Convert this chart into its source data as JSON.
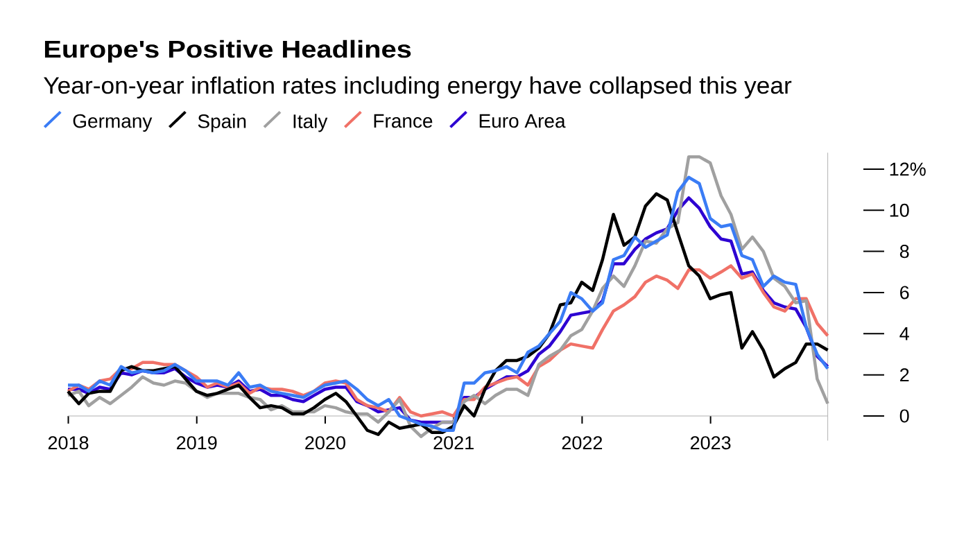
{
  "chart_data": {
    "type": "line",
    "title": "Europe's Positive Headlines",
    "subtitle": "Year-on-year inflation rates including energy have collapsed this year",
    "x": [
      "2017-12-31",
      "2018-01-31",
      "2018-02-28",
      "2018-03-31",
      "2018-04-30",
      "2018-05-31",
      "2018-06-30",
      "2018-07-31",
      "2018-08-31",
      "2018-09-30",
      "2018-10-31",
      "2018-11-30",
      "2018-12-31",
      "2019-01-31",
      "2019-02-28",
      "2019-03-31",
      "2019-04-30",
      "2019-05-31",
      "2019-06-30",
      "2019-07-31",
      "2019-08-31",
      "2019-09-30",
      "2019-10-31",
      "2019-11-30",
      "2019-12-31",
      "2020-01-31",
      "2020-02-29",
      "2020-03-31",
      "2020-04-30",
      "2020-05-31",
      "2020-06-30",
      "2020-07-31",
      "2020-08-31",
      "2020-09-30",
      "2020-10-31",
      "2020-11-30",
      "2020-12-31",
      "2021-01-31",
      "2021-02-28",
      "2021-03-31",
      "2021-04-30",
      "2021-05-31",
      "2021-06-30",
      "2021-07-31",
      "2021-08-31",
      "2021-09-30",
      "2021-10-31",
      "2021-11-30",
      "2021-12-31",
      "2022-01-31",
      "2022-02-28",
      "2022-03-31",
      "2022-04-30",
      "2022-05-31",
      "2022-06-30",
      "2022-07-31",
      "2022-08-31",
      "2022-09-30",
      "2022-10-31",
      "2022-11-30",
      "2022-12-31",
      "2023-01-31",
      "2023-02-28",
      "2023-03-31",
      "2023-04-30",
      "2023-05-31",
      "2023-06-30",
      "2023-07-31",
      "2023-08-31",
      "2023-09-30",
      "2023-10-31",
      "2023-11-30"
    ],
    "series": [
      {
        "name": "Germany",
        "color": "#3a7cf5",
        "values": [
          1.5,
          1.5,
          1.2,
          1.7,
          1.5,
          2.4,
          2.1,
          2.2,
          2.1,
          2.2,
          2.5,
          2.2,
          1.7,
          1.7,
          1.7,
          1.5,
          2.1,
          1.4,
          1.5,
          1.2,
          1.1,
          1.0,
          0.9,
          1.2,
          1.5,
          1.6,
          1.7,
          1.3,
          0.8,
          0.5,
          0.8,
          0.0,
          -0.2,
          -0.4,
          -0.5,
          -0.7,
          -0.7,
          1.6,
          1.6,
          2.1,
          2.2,
          2.4,
          2.1,
          3.1,
          3.4,
          4.0,
          4.6,
          6.0,
          5.7,
          5.1,
          5.5,
          7.6,
          7.8,
          8.7,
          8.2,
          8.5,
          8.8,
          10.9,
          11.6,
          11.3,
          9.6,
          9.2,
          9.3,
          7.8,
          7.6,
          6.3,
          6.8,
          6.5,
          6.4,
          4.3,
          3.0,
          2.3
        ]
      },
      {
        "name": "Spain",
        "color": "#000000",
        "values": [
          1.2,
          0.6,
          1.1,
          1.2,
          1.2,
          2.2,
          2.4,
          2.2,
          2.2,
          2.3,
          2.4,
          1.8,
          1.2,
          1.0,
          1.1,
          1.3,
          1.5,
          0.9,
          0.4,
          0.5,
          0.4,
          0.1,
          0.1,
          0.4,
          0.8,
          1.1,
          0.7,
          0.0,
          -0.7,
          -0.9,
          -0.3,
          -0.6,
          -0.5,
          -0.4,
          -0.8,
          -0.8,
          -0.5,
          0.5,
          0.0,
          1.3,
          2.2,
          2.7,
          2.7,
          2.9,
          3.3,
          4.0,
          5.4,
          5.5,
          6.5,
          6.1,
          7.6,
          9.8,
          8.3,
          8.7,
          10.2,
          10.8,
          10.5,
          8.9,
          7.3,
          6.8,
          5.7,
          5.9,
          6.0,
          3.3,
          4.1,
          3.2,
          1.9,
          2.3,
          2.6,
          3.5,
          3.5,
          3.2
        ]
      },
      {
        "name": "Italy",
        "color": "#a0a0a0",
        "values": [
          1.0,
          1.2,
          0.5,
          0.9,
          0.6,
          1.0,
          1.4,
          1.9,
          1.6,
          1.5,
          1.7,
          1.6,
          1.2,
          0.9,
          1.1,
          1.1,
          1.1,
          0.9,
          0.8,
          0.3,
          0.5,
          0.2,
          0.2,
          0.2,
          0.5,
          0.4,
          0.2,
          0.1,
          0.1,
          -0.3,
          0.2,
          0.8,
          -0.5,
          -1.0,
          -0.6,
          -0.3,
          -0.3,
          0.7,
          1.0,
          0.6,
          1.0,
          1.3,
          1.3,
          1.0,
          2.5,
          2.9,
          3.2,
          3.9,
          4.2,
          5.1,
          6.2,
          6.8,
          6.3,
          7.3,
          8.5,
          8.4,
          9.1,
          9.4,
          12.6,
          12.6,
          12.3,
          10.7,
          9.8,
          8.1,
          8.7,
          8.0,
          6.7,
          6.3,
          5.5,
          5.6,
          1.8,
          0.6
        ]
      },
      {
        "name": "France",
        "color": "#f07167",
        "values": [
          1.2,
          1.5,
          1.3,
          1.7,
          1.8,
          2.3,
          2.3,
          2.6,
          2.6,
          2.5,
          2.5,
          2.2,
          1.9,
          1.4,
          1.6,
          1.4,
          1.6,
          1.1,
          1.4,
          1.3,
          1.3,
          1.2,
          1.0,
          1.2,
          1.6,
          1.7,
          1.6,
          0.8,
          0.5,
          0.4,
          0.2,
          0.9,
          0.2,
          0.0,
          0.1,
          0.2,
          0.0,
          0.8,
          0.8,
          1.4,
          1.6,
          1.8,
          1.9,
          1.5,
          2.4,
          2.7,
          3.2,
          3.5,
          3.4,
          3.3,
          4.2,
          5.1,
          5.4,
          5.8,
          6.5,
          6.8,
          6.6,
          6.2,
          7.1,
          7.1,
          6.7,
          7.0,
          7.3,
          6.7,
          6.9,
          6.0,
          5.3,
          5.1,
          5.7,
          5.7,
          4.5,
          3.9
        ]
      },
      {
        "name": "Euro Area",
        "color": "#2d00d2",
        "values": [
          1.3,
          1.3,
          1.1,
          1.4,
          1.3,
          2.1,
          2.0,
          2.2,
          2.1,
          2.1,
          2.3,
          1.9,
          1.6,
          1.4,
          1.5,
          1.4,
          1.7,
          1.2,
          1.3,
          1.0,
          1.0,
          0.8,
          0.7,
          1.0,
          1.3,
          1.4,
          1.4,
          0.7,
          0.5,
          0.2,
          0.3,
          0.4,
          -0.2,
          -0.3,
          -0.3,
          -0.3,
          -0.3,
          0.9,
          0.9,
          1.3,
          1.6,
          1.9,
          1.9,
          2.2,
          3.0,
          3.4,
          4.1,
          4.9,
          5.0,
          5.1,
          5.6,
          7.4,
          7.4,
          8.1,
          8.6,
          8.9,
          9.1,
          10.0,
          10.6,
          10.1,
          9.2,
          8.6,
          8.5,
          6.9,
          7.0,
          6.1,
          5.5,
          5.3,
          5.2,
          4.3,
          2.9,
          2.4
        ]
      }
    ],
    "xlim": [
      "2017-12-31",
      "2023-11-30"
    ],
    "xticks": [
      {
        "value": "2018-01-01",
        "label": "2018"
      },
      {
        "value": "2019-01-01",
        "label": "2019"
      },
      {
        "value": "2020-01-01",
        "label": "2020"
      },
      {
        "value": "2021-01-01",
        "label": "2021"
      },
      {
        "value": "2022-01-01",
        "label": "2022"
      },
      {
        "value": "2023-01-01",
        "label": "2023"
      }
    ],
    "ylim": [
      -1.2,
      12.8
    ],
    "yticks": [
      0,
      2,
      4,
      6,
      8,
      10,
      {
        "value": 12,
        "label": "12%"
      }
    ],
    "legend": "top left"
  }
}
